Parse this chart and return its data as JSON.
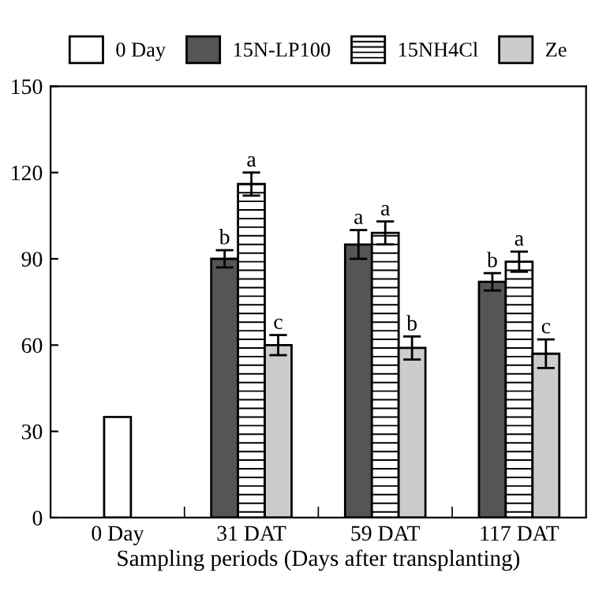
{
  "chart_data": {
    "type": "bar",
    "xlabel": "Sampling periods (Days after transplanting)",
    "categories": [
      "0 Day",
      "31 DAT",
      "59 DAT",
      "117 DAT"
    ],
    "series": [
      {
        "name": "0 Day",
        "color": "#ffffff",
        "values": [
          35,
          null,
          null,
          null
        ]
      },
      {
        "name": "15N-LP100",
        "color": "#555555",
        "values": [
          null,
          90,
          95,
          82
        ],
        "errors": [
          null,
          3,
          5,
          3
        ],
        "value_labels": [
          null,
          "b",
          "a",
          "b"
        ]
      },
      {
        "name": "15NH4Cl",
        "color": "#ffffff",
        "values": [
          null,
          116,
          99,
          89
        ],
        "errors": [
          null,
          4,
          4,
          3.5
        ],
        "value_labels": [
          null,
          "a",
          "a",
          "a"
        ]
      },
      {
        "name": "Ze",
        "color": "#cccccc",
        "values": [
          null,
          60,
          59,
          57
        ],
        "errors": [
          null,
          3.5,
          4,
          5
        ],
        "value_labels": [
          null,
          "c",
          "b",
          "c"
        ]
      }
    ],
    "ylim": [
      0,
      150
    ],
    "yticks": [
      0,
      30,
      60,
      90,
      120,
      150
    ],
    "legend": "top",
    "grid": false
  }
}
